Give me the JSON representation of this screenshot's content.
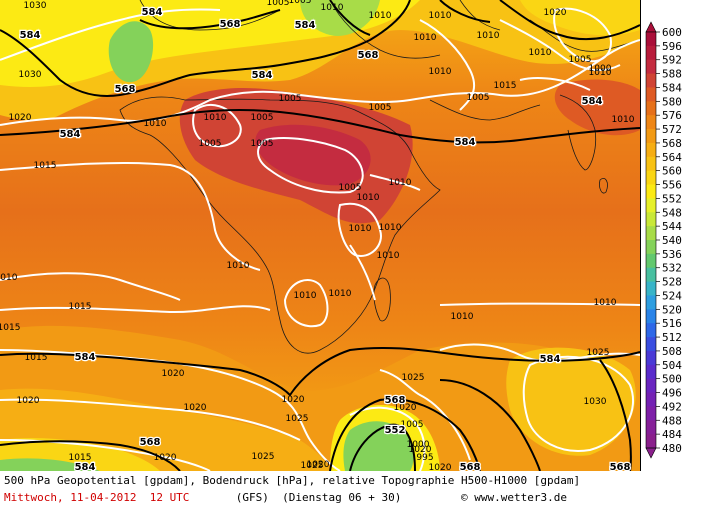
{
  "footer": {
    "title_line": "500 hPa Geopotential [gpdam], Bodendruck [hPa], relative Topographie H500-H1000 [gpdam]",
    "date": "Mittwoch, 11-04-2012  12 UTC",
    "model": "(GFS)",
    "run": "(Dienstag 06 + 30)",
    "copyright": "© www.wetter3.de"
  },
  "legend": {
    "ticks": [
      "600",
      "596",
      "592",
      "588",
      "584",
      "580",
      "576",
      "572",
      "568",
      "564",
      "560",
      "556",
      "552",
      "548",
      "544",
      "540",
      "536",
      "532",
      "528",
      "524",
      "520",
      "516",
      "512",
      "508",
      "504",
      "500",
      "496",
      "492",
      "488",
      "484",
      "480"
    ],
    "colors": [
      "#aa0f3a",
      "#b81c3c",
      "#c42c40",
      "#d04434",
      "#de5a24",
      "#e6701a",
      "#ee8616",
      "#f29a14",
      "#f6ae14",
      "#f8c214",
      "#fad614",
      "#fcea14",
      "#e6f02a",
      "#c8e838",
      "#a8dc48",
      "#84d25a",
      "#62c86e",
      "#48bfa0",
      "#38b4c8",
      "#2e9ee0",
      "#2a84e8",
      "#2e68e8",
      "#3a4ee0",
      "#4a3ad6",
      "#5a2ccc",
      "#6a26c0",
      "#7422b4",
      "#7e20a8",
      "#862098",
      "#8a208c"
    ]
  },
  "map_labels": {
    "geopotential": [
      "584",
      "568",
      "568",
      "584",
      "568",
      "584",
      "584",
      "584",
      "584",
      "584",
      "584",
      "568",
      "552",
      "584",
      "568",
      "584",
      "568",
      "568"
    ],
    "pressure": [
      "1030",
      "1005",
      "1005",
      "1010",
      "1010",
      "1030",
      "1020",
      "1010",
      "1020",
      "1010",
      "1010",
      "1010",
      "1010",
      "1005",
      "1010",
      "1005",
      "1005",
      "1010",
      "1005",
      "1015",
      "1005",
      "1005",
      "1010",
      "1005",
      "1010",
      "1010",
      "1010",
      "1010",
      "1010",
      "1010",
      "1010",
      "1010",
      "1010",
      "1010",
      "1015",
      "1015",
      "1020",
      "1020",
      "1020",
      "1025",
      "1025",
      "1025",
      "1020",
      "1025",
      "1015",
      "1010",
      "1030",
      "1020",
      "1020",
      "1025",
      "1020",
      "1005",
      "1000",
      "995",
      "1000",
      "1015",
      "1020",
      "1020",
      "1010",
      "1015",
      "1005"
    ]
  }
}
